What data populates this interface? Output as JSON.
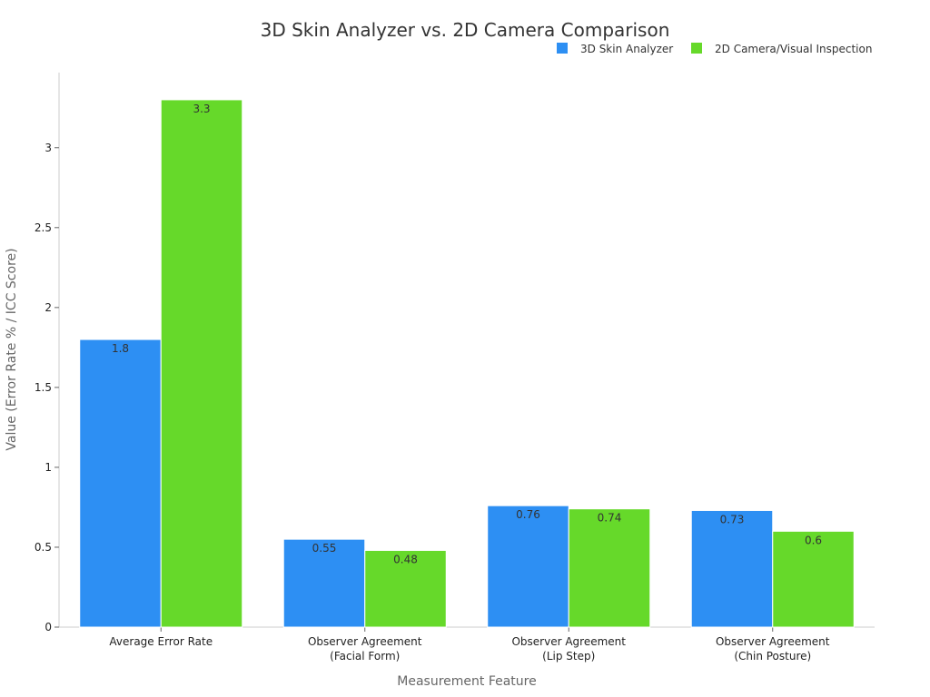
{
  "chart_data": {
    "type": "bar",
    "title": "3D Skin Analyzer vs. 2D Camera Comparison",
    "xlabel": "Measurement Feature",
    "ylabel": "Value (Error Rate % / ICC Score)",
    "categories": [
      [
        "Average Error Rate"
      ],
      [
        "Observer Agreement",
        "(Facial Form)"
      ],
      [
        "Observer Agreement",
        "(Lip Step)"
      ],
      [
        "Observer Agreement",
        "(Chin Posture)"
      ]
    ],
    "series": [
      {
        "name": "3D Skin Analyzer",
        "color": "#2d8ff3",
        "values": [
          1.8,
          0.55,
          0.76,
          0.73
        ]
      },
      {
        "name": "2D Camera/Visual Inspection",
        "color": "#66d92a",
        "values": [
          3.3,
          0.48,
          0.74,
          0.6
        ]
      }
    ],
    "ylim": [
      0,
      3.47
    ],
    "yticks": [
      0,
      0.5,
      1,
      1.5,
      2,
      2.5,
      3
    ],
    "ytick_labels": [
      "0",
      "0.5",
      "1",
      "1.5",
      "2",
      "2.5",
      "3"
    ],
    "legend_position": "top-right",
    "grid": false
  }
}
